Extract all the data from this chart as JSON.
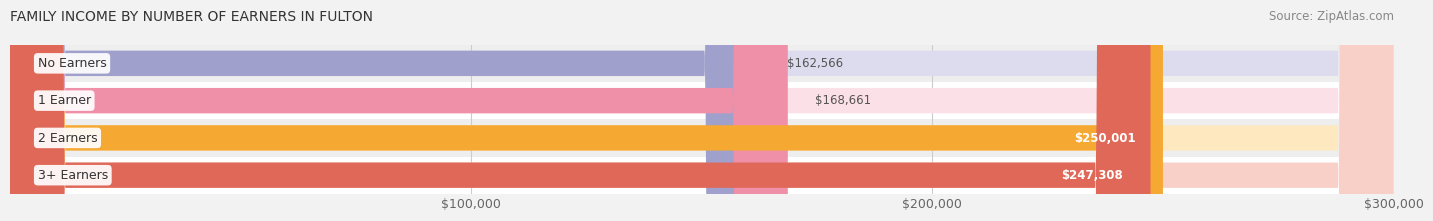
{
  "title": "FAMILY INCOME BY NUMBER OF EARNERS IN FULTON",
  "source": "Source: ZipAtlas.com",
  "categories": [
    "No Earners",
    "1 Earner",
    "2 Earners",
    "3+ Earners"
  ],
  "values": [
    162566,
    168661,
    250001,
    247308
  ],
  "labels": [
    "$162,566",
    "$168,661",
    "$250,001",
    "$247,308"
  ],
  "bar_colors": [
    "#a0a0cc",
    "#f090a8",
    "#f5a832",
    "#e06858"
  ],
  "bar_bg_colors": [
    "#dcdcee",
    "#fce0e8",
    "#fde8c0",
    "#f8d0c8"
  ],
  "row_bg_colors": [
    "#eeeeee",
    "#ffffff",
    "#eeeeee",
    "#ffffff"
  ],
  "xmin": 0,
  "xmax": 300000,
  "xticks": [
    100000,
    200000,
    300000
  ],
  "xtick_labels": [
    "$100,000",
    "$200,000",
    "$300,000"
  ],
  "title_fontsize": 10,
  "source_fontsize": 8.5,
  "label_fontsize": 8.5,
  "cat_fontsize": 9,
  "tick_fontsize": 9,
  "background_color": "#f2f2f2"
}
